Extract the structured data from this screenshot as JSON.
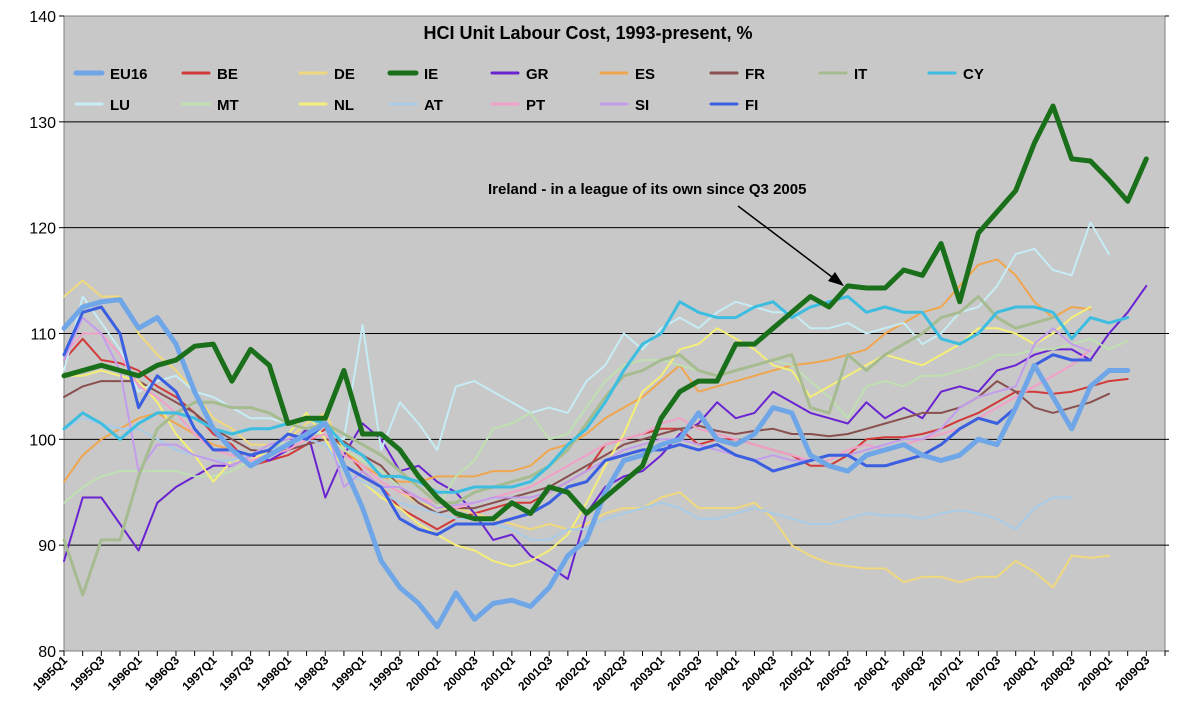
{
  "chart_data": {
    "type": "line",
    "title": "HCI Unit Labour Cost, 1993-present, %",
    "xlabel": "",
    "ylabel": "",
    "ylim": [
      80,
      140
    ],
    "yticks": [
      80,
      90,
      100,
      110,
      120,
      130,
      140
    ],
    "x_tick_labels": [
      "1995Q1",
      "1995Q3",
      "1996Q1",
      "1996Q3",
      "1997Q1",
      "1997Q3",
      "1998Q1",
      "1998Q3",
      "1999Q1",
      "1999Q3",
      "2000Q1",
      "2000Q3",
      "2001Q1",
      "2001Q3",
      "2002Q1",
      "2002Q3",
      "2003Q1",
      "2003Q3",
      "2004Q1",
      "2004Q3",
      "2005Q1",
      "2005Q3",
      "2006Q1",
      "2006Q3",
      "2007Q1",
      "2007Q3",
      "2008Q1",
      "2008Q3",
      "2009Q1",
      "2009Q3"
    ],
    "annotation": "Ireland - in a league of its own since Q3 2005",
    "legend_position": "top",
    "series": [
      {
        "name": "EU16",
        "color": "#6fa6e8",
        "width": 5,
        "values": [
          110.5,
          112.5,
          113.0,
          113.2,
          110.5,
          111.5,
          109,
          104.5,
          101,
          99,
          97.5,
          98.5,
          99.5,
          100.5,
          101.5,
          97.5,
          93.5,
          88.5,
          86,
          84.5,
          82.3,
          85.5,
          83,
          84.5,
          84.8,
          84.2,
          86,
          89,
          90.5,
          95,
          98,
          98.5,
          99.5,
          100,
          102.5,
          100,
          99.5,
          100.5,
          103,
          102.5,
          98.5,
          97.5,
          97,
          98.5,
          99,
          99.5,
          98.5,
          98,
          98.5,
          100,
          99.5,
          103,
          107,
          104,
          101,
          105,
          106.5,
          106.5
        ]
      },
      {
        "name": "BE",
        "color": "#d23a3a",
        "width": 2,
        "values": [
          107.5,
          109.5,
          107.5,
          107.2,
          106.5,
          105,
          104,
          102.5,
          100.5,
          99.5,
          97.5,
          98,
          98.5,
          99.5,
          101,
          99,
          97,
          95.5,
          93.5,
          92.5,
          91.5,
          92.5,
          93,
          93.5,
          94,
          94,
          95,
          96,
          97,
          99.5,
          100,
          100.5,
          101,
          101,
          99.5,
          100,
          100,
          99.5,
          99,
          98.5,
          97.5,
          97.5,
          98.5,
          100,
          100.2,
          100.2,
          100.5,
          101,
          101.8,
          102.5,
          103.5,
          104.5,
          104.5,
          104.3,
          104.5,
          105,
          105.5,
          105.7
        ]
      },
      {
        "name": "DE",
        "color": "#f0d97c",
        "width": 2,
        "values": [
          113.5,
          115,
          113.5,
          113.5,
          110,
          108,
          106.5,
          104.5,
          102,
          101,
          99.5,
          99.5,
          100,
          101.5,
          102.5,
          99,
          97.5,
          96,
          95,
          94,
          93.5,
          93.5,
          93,
          92.5,
          92,
          91.5,
          92,
          91.5,
          92,
          93,
          93.5,
          93.5,
          94.5,
          95,
          93.5,
          93.5,
          93.5,
          94,
          92.5,
          90,
          89,
          88.3,
          88,
          87.8,
          87.8,
          86.5,
          87,
          87,
          86.5,
          87,
          87,
          88.5,
          87.5,
          86,
          89,
          88.8,
          89
        ]
      },
      {
        "name": "IE",
        "color": "#1a6f1a",
        "width": 5,
        "values": [
          106,
          106.5,
          107,
          106.5,
          106,
          107,
          107.5,
          108.8,
          109,
          105.5,
          108.5,
          107,
          101.5,
          102,
          102,
          106.5,
          100.5,
          100.5,
          99,
          96.5,
          94.5,
          93,
          92.5,
          92.5,
          94,
          93,
          95.5,
          95,
          93,
          94.5,
          96,
          97.5,
          102,
          104.5,
          105.5,
          105.5,
          109,
          109,
          110.5,
          112,
          113.5,
          112.5,
          114.5,
          114.3,
          114.3,
          116,
          115.5,
          118.5,
          113,
          119.5,
          121.5,
          123.5,
          128,
          131.5,
          126.5,
          126.3,
          124.5,
          122.5,
          126.5
        ]
      },
      {
        "name": "GR",
        "color": "#6a23d1",
        "width": 2,
        "values": [
          88.5,
          94.5,
          94.5,
          92,
          89.5,
          94,
          95.5,
          96.5,
          97.5,
          97.5,
          98.5,
          98,
          99,
          101,
          94.5,
          98.5,
          101.5,
          100,
          97,
          97.5,
          96,
          95,
          93,
          90.5,
          91,
          89,
          88,
          86.8,
          93,
          95.5,
          96.5,
          97,
          98.5,
          100.5,
          101.5,
          103.5,
          102,
          102.5,
          104.5,
          103.5,
          102.5,
          102,
          101.5,
          103.5,
          102,
          103,
          102,
          104.5,
          105,
          104.5,
          106.5,
          107,
          108,
          108.5,
          108.5,
          107.5,
          110,
          112,
          114.5
        ]
      },
      {
        "name": "ES",
        "color": "#f0a64e",
        "width": 2,
        "values": [
          96,
          98.5,
          100,
          101,
          102,
          102.5,
          101.5,
          100.5,
          99.5,
          99,
          98.5,
          99,
          99.5,
          100,
          100.5,
          99,
          97.5,
          96.5,
          96,
          96,
          96.5,
          96.5,
          96.5,
          97,
          97,
          97.5,
          99,
          99.5,
          100.5,
          102,
          103,
          104,
          105.5,
          107,
          104.5,
          105,
          105.5,
          106,
          106.5,
          107,
          107.2,
          107.5,
          108,
          108.5,
          110,
          111,
          112,
          112.5,
          114.5,
          116.5,
          117,
          115.5,
          113,
          111.5,
          112.5,
          112.3
        ]
      },
      {
        "name": "FR",
        "color": "#8a5050",
        "width": 2,
        "values": [
          104,
          105,
          105.5,
          105.5,
          105.5,
          104.5,
          103.5,
          102.5,
          101,
          100,
          99,
          98.8,
          99,
          99.5,
          100,
          99.8,
          98.5,
          97.5,
          95.5,
          94,
          93,
          93.5,
          93.5,
          94,
          94.5,
          95,
          95.5,
          96.5,
          97.5,
          98.5,
          99.5,
          100,
          100.5,
          101,
          101.3,
          100.8,
          100.5,
          100.8,
          101,
          100.5,
          100.5,
          100.3,
          100.5,
          101,
          101.5,
          102,
          102.5,
          102.5,
          103,
          104,
          105.5,
          104.5,
          103,
          102.5,
          103,
          103.5,
          104.3
        ]
      },
      {
        "name": "IT",
        "color": "#a6bc90",
        "width": 3,
        "values": [
          90.5,
          85.3,
          90.5,
          90.5,
          96.5,
          101,
          102.5,
          103.5,
          103.5,
          103,
          103,
          102.5,
          101.5,
          101,
          101.5,
          100.5,
          99.5,
          98.5,
          97,
          95.5,
          94,
          94,
          95,
          95.5,
          96,
          96.5,
          97.5,
          99,
          101.5,
          104,
          106,
          106.5,
          107.5,
          108,
          106.5,
          106,
          106.5,
          107,
          107.5,
          108,
          103,
          102.5,
          108,
          106.5,
          108,
          109,
          110,
          111.5,
          112,
          113.5,
          111.5,
          110.5,
          111,
          111.5
        ]
      },
      {
        "name": "CY",
        "color": "#3dbde0",
        "width": 3,
        "values": [
          101,
          102.5,
          101.5,
          100,
          101.5,
          102.5,
          102.5,
          102,
          101,
          100.5,
          101,
          101,
          101.5,
          102,
          101.5,
          99.5,
          98.5,
          96.5,
          96.5,
          96,
          95,
          95,
          95.5,
          95.5,
          95.5,
          96,
          97.5,
          99.5,
          101,
          103.5,
          106.5,
          109,
          110,
          113,
          112,
          111.5,
          111.5,
          112.5,
          113,
          111.5,
          112.5,
          113,
          113.5,
          112,
          112.5,
          112,
          112,
          109.5,
          109,
          110,
          112,
          112.5,
          112.5,
          112,
          109.5,
          111.5,
          111,
          111.5
        ]
      },
      {
        "name": "LU",
        "color": "#c6ecf5",
        "width": 2,
        "values": [
          106.5,
          113.5,
          111,
          108.5,
          104.5,
          105.5,
          106,
          104.5,
          104,
          103,
          102,
          102,
          101.5,
          101,
          100.5,
          100,
          110.8,
          99,
          103.5,
          101.5,
          99,
          105,
          105.5,
          104.5,
          103.5,
          102.5,
          103,
          102.5,
          105.5,
          107,
          110,
          108.5,
          110.5,
          111.5,
          110.5,
          112,
          113,
          112.5,
          112,
          112,
          110.5,
          110.5,
          111,
          110,
          110.5,
          111,
          109,
          110,
          112,
          112.5,
          114.5,
          117.5,
          118,
          116,
          115.5,
          120.5,
          117.5
        ]
      },
      {
        "name": "MT",
        "color": "#bfe0b0",
        "width": 2,
        "values": [
          94,
          95.5,
          96.5,
          97,
          97,
          97,
          97,
          96.5,
          96.5,
          97,
          98,
          99,
          100,
          100.5,
          100.5,
          99,
          98,
          97,
          95.5,
          94.5,
          93.5,
          96.5,
          98,
          101,
          101.5,
          102.5,
          100,
          100.5,
          103,
          105.5,
          107,
          107.5,
          107.5,
          107,
          106.5,
          106,
          106.5,
          107,
          107.5,
          107,
          105.5,
          104,
          102,
          105,
          105.5,
          105,
          106,
          106,
          106.5,
          107,
          108,
          108,
          108.5,
          108.5,
          109,
          109.5,
          108.5,
          109.3
        ]
      },
      {
        "name": "NL",
        "color": "#f5ee78",
        "width": 2,
        "values": [
          106,
          106,
          106.5,
          106,
          105.5,
          103.5,
          100.5,
          98.5,
          96,
          98,
          98,
          99,
          100.5,
          102.5,
          100,
          97,
          96,
          94.5,
          93.5,
          92,
          91,
          90,
          89.5,
          88.5,
          88,
          88.5,
          89.5,
          91,
          94,
          97.5,
          100.5,
          104.5,
          106,
          108.5,
          109,
          110.5,
          109.5,
          108.5,
          107,
          106.5,
          104,
          105,
          106,
          107,
          108,
          107.5,
          107,
          108,
          109,
          110.5,
          110.5,
          110,
          109,
          110,
          111.5,
          112.5
        ]
      },
      {
        "name": "AT",
        "color": "#a8cce8",
        "width": 2,
        "values": [
          101,
          102,
          101.5,
          101,
          101,
          100,
          99,
          98.5,
          98,
          98,
          98.5,
          99,
          99.5,
          100,
          99.5,
          97,
          96,
          95,
          94,
          93.5,
          93,
          92.5,
          92.5,
          92,
          91.5,
          90.5,
          90.5,
          91.5,
          91.5,
          92.5,
          93,
          93.5,
          94,
          93.5,
          92.5,
          92.5,
          93,
          93.5,
          93,
          92.5,
          92,
          92,
          92.5,
          93,
          92.8,
          92.8,
          92.5,
          93,
          93.3,
          93,
          92.5,
          91.5,
          93.5,
          94.5,
          94.5
        ]
      },
      {
        "name": "PT",
        "color": "#f2a0c8",
        "width": 2,
        "values": [
          108,
          110,
          110,
          108,
          105,
          104,
          102.5,
          100.5,
          99,
          98.5,
          98,
          98.5,
          99,
          100,
          100.5,
          98.5,
          97.5,
          96,
          95,
          94.5,
          94,
          93.5,
          94,
          94.5,
          95,
          95.5,
          96.5,
          97.5,
          98.5,
          99.5,
          100,
          100.5,
          101.5,
          102,
          101,
          100.5,
          100,
          99.5,
          99,
          98.5,
          98,
          98,
          99,
          99.5,
          99,
          99.5,
          100,
          100.5,
          101,
          102,
          103,
          104,
          105,
          106,
          107,
          108.5
        ]
      },
      {
        "name": "SI",
        "color": "#c49cec",
        "width": 2,
        "values": [
          107.5,
          111.5,
          110,
          106.5,
          97,
          99.5,
          99.5,
          98.5,
          98,
          97.5,
          98.5,
          99.5,
          100,
          100.5,
          101.5,
          95.5,
          97,
          95.5,
          95.5,
          94.5,
          93.5,
          93.8,
          94,
          94.5,
          94.5,
          94.5,
          95,
          96,
          97,
          98,
          99,
          99.5,
          100,
          100,
          99.5,
          99,
          98.5,
          98,
          98.5,
          98,
          98,
          98.5,
          98.5,
          99,
          99.5,
          100,
          100,
          101,
          103,
          104,
          104.5,
          105,
          109,
          110.5,
          109,
          108.3
        ]
      },
      {
        "name": "FI",
        "color": "#3a5fe0",
        "width": 3,
        "values": [
          108,
          112,
          112.5,
          110,
          103,
          106,
          104.5,
          101,
          99,
          99,
          98.5,
          99,
          100.5,
          100,
          101.5,
          97.5,
          96.5,
          95.5,
          92.5,
          91.5,
          91,
          92,
          92,
          92,
          92.5,
          93,
          94,
          95.5,
          96,
          98,
          98.5,
          99,
          99,
          99.5,
          99,
          99.5,
          98.5,
          98,
          97,
          97.5,
          98,
          98.5,
          98.5,
          97.5,
          97.5,
          98,
          98.5,
          99.5,
          101,
          102,
          101.5,
          103,
          107,
          108,
          107.5,
          107.5
        ]
      }
    ]
  }
}
